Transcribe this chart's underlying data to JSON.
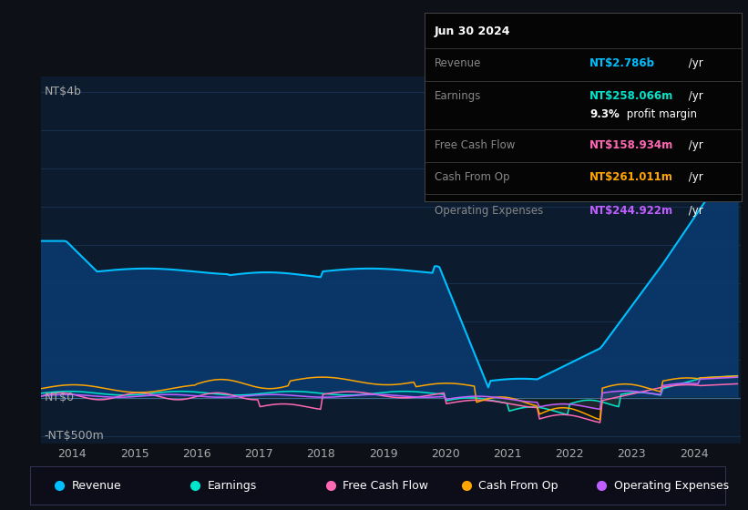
{
  "bg_color": "#0d1117",
  "plot_bg_color": "#0d1b2e",
  "grid_color": "#1e3a5f",
  "ylim": [
    -600000000,
    4200000000
  ],
  "xlim": [
    2013.5,
    2024.75
  ],
  "info_box": {
    "date": "Jun 30 2024",
    "revenue_label": "Revenue",
    "revenue_value": "NT$2.786b",
    "revenue_unit": " /yr",
    "revenue_color": "#00bfff",
    "earnings_label": "Earnings",
    "earnings_value": "NT$258.066m",
    "earnings_unit": " /yr",
    "earnings_color": "#00e5cc",
    "margin_value": "9.3%",
    "margin_text": " profit margin",
    "fcf_label": "Free Cash Flow",
    "fcf_value": "NT$158.934m",
    "fcf_unit": " /yr",
    "fcf_color": "#ff69b4",
    "cashop_label": "Cash From Op",
    "cashop_value": "NT$261.011m",
    "cashop_unit": " /yr",
    "cashop_color": "#ffa500",
    "opex_label": "Operating Expenses",
    "opex_value": "NT$244.922m",
    "opex_unit": " /yr",
    "opex_color": "#bf5fff"
  },
  "legend": [
    {
      "label": "Revenue",
      "color": "#00bfff"
    },
    {
      "label": "Earnings",
      "color": "#00e5cc"
    },
    {
      "label": "Free Cash Flow",
      "color": "#ff69b4"
    },
    {
      "label": "Cash From Op",
      "color": "#ffa500"
    },
    {
      "label": "Operating Expenses",
      "color": "#bf5fff"
    }
  ],
  "revenue_color": "#00bfff",
  "revenue_fill": "#0a3a6e",
  "earnings_color": "#00e5cc",
  "fcf_color": "#ff69b4",
  "cashop_color": "#ffa500",
  "opex_color": "#bf5fff"
}
